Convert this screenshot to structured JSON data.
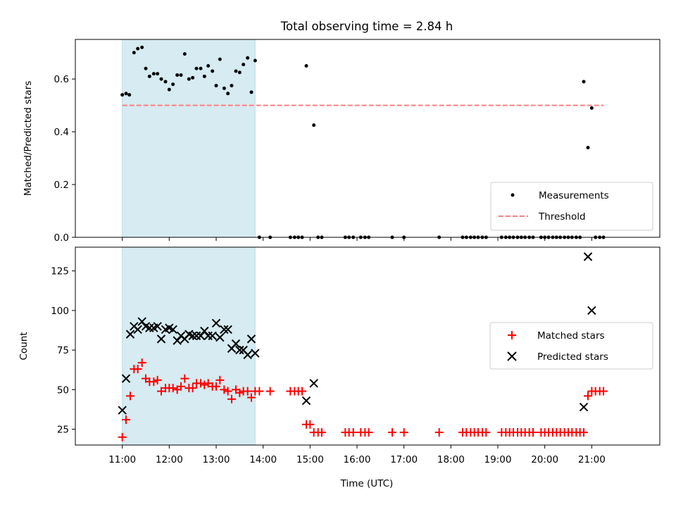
{
  "chart_data": {
    "title": "Total observing time = 2.84 h",
    "xlabel": "Time (UTC)",
    "x_range_hours": [
      10.0,
      22.45
    ],
    "x_ticks": [
      {
        "h": 11,
        "label": "11:00"
      },
      {
        "h": 12,
        "label": "12:00"
      },
      {
        "h": 13,
        "label": "13:00"
      },
      {
        "h": 14,
        "label": "14:00"
      },
      {
        "h": 15,
        "label": "15:00"
      },
      {
        "h": 16,
        "label": "16:00"
      },
      {
        "h": 17,
        "label": "17:00"
      },
      {
        "h": 18,
        "label": "18:00"
      },
      {
        "h": 19,
        "label": "19:00"
      },
      {
        "h": 20,
        "label": "20:00"
      },
      {
        "h": 21,
        "label": "21:00"
      }
    ],
    "shaded_span_hours": [
      11.0,
      13.83
    ],
    "shade_color": "#add8e6",
    "top": {
      "type": "scatter",
      "ylabel": "Matched/Predicted stars",
      "ylim": [
        0.0,
        0.75
      ],
      "y_ticks": [
        "0.0",
        "0.2",
        "0.4",
        "0.6"
      ],
      "threshold": 0.5,
      "threshold_color": "#ff7f7f",
      "legend": {
        "placement": "lower-right",
        "entries": [
          "Measurements",
          "Threshold"
        ]
      },
      "points": [
        [
          11.0,
          0.54
        ],
        [
          11.08,
          0.545
        ],
        [
          11.15,
          0.54
        ],
        [
          11.25,
          0.7
        ],
        [
          11.33,
          0.715
        ],
        [
          11.42,
          0.72
        ],
        [
          11.5,
          0.64
        ],
        [
          11.58,
          0.61
        ],
        [
          11.67,
          0.62
        ],
        [
          11.75,
          0.62
        ],
        [
          11.83,
          0.6
        ],
        [
          11.92,
          0.59
        ],
        [
          12.0,
          0.56
        ],
        [
          12.08,
          0.58
        ],
        [
          12.17,
          0.615
        ],
        [
          12.25,
          0.615
        ],
        [
          12.33,
          0.695
        ],
        [
          12.42,
          0.6
        ],
        [
          12.5,
          0.605
        ],
        [
          12.58,
          0.64
        ],
        [
          12.67,
          0.64
        ],
        [
          12.75,
          0.61
        ],
        [
          12.83,
          0.65
        ],
        [
          12.92,
          0.63
        ],
        [
          13.0,
          0.575
        ],
        [
          13.08,
          0.675
        ],
        [
          13.17,
          0.565
        ],
        [
          13.25,
          0.545
        ],
        [
          13.33,
          0.575
        ],
        [
          13.42,
          0.63
        ],
        [
          13.5,
          0.625
        ],
        [
          13.58,
          0.655
        ],
        [
          13.67,
          0.68
        ],
        [
          13.75,
          0.55
        ],
        [
          13.83,
          0.67
        ],
        [
          13.92,
          0.0
        ],
        [
          14.15,
          0.0
        ],
        [
          14.58,
          0.0
        ],
        [
          14.67,
          0.0
        ],
        [
          14.75,
          0.0
        ],
        [
          14.83,
          0.0
        ],
        [
          14.92,
          0.65
        ],
        [
          15.08,
          0.425
        ],
        [
          15.17,
          0.0
        ],
        [
          15.25,
          0.0
        ],
        [
          15.75,
          0.0
        ],
        [
          15.83,
          0.0
        ],
        [
          15.92,
          0.0
        ],
        [
          16.08,
          0.0
        ],
        [
          16.17,
          0.0
        ],
        [
          16.25,
          0.0
        ],
        [
          16.75,
          0.0
        ],
        [
          17.0,
          0.0
        ],
        [
          17.75,
          0.0
        ],
        [
          18.25,
          0.0
        ],
        [
          18.33,
          0.0
        ],
        [
          18.42,
          0.0
        ],
        [
          18.5,
          0.0
        ],
        [
          18.58,
          0.0
        ],
        [
          18.67,
          0.0
        ],
        [
          18.75,
          0.0
        ],
        [
          19.08,
          0.0
        ],
        [
          19.17,
          0.0
        ],
        [
          19.25,
          0.0
        ],
        [
          19.33,
          0.0
        ],
        [
          19.42,
          0.0
        ],
        [
          19.5,
          0.0
        ],
        [
          19.58,
          0.0
        ],
        [
          19.67,
          0.0
        ],
        [
          19.75,
          0.0
        ],
        [
          19.92,
          0.0
        ],
        [
          20.0,
          0.0
        ],
        [
          20.08,
          0.0
        ],
        [
          20.17,
          0.0
        ],
        [
          20.25,
          0.0
        ],
        [
          20.33,
          0.0
        ],
        [
          20.42,
          0.0
        ],
        [
          20.5,
          0.0
        ],
        [
          20.58,
          0.0
        ],
        [
          20.67,
          0.0
        ],
        [
          20.75,
          0.0
        ],
        [
          20.83,
          0.59
        ],
        [
          20.92,
          0.34
        ],
        [
          21.0,
          0.49
        ],
        [
          21.08,
          0.0
        ],
        [
          21.17,
          0.0
        ],
        [
          21.25,
          0.0
        ]
      ]
    },
    "bottom": {
      "type": "scatter",
      "ylabel": "Count",
      "ylim": [
        15,
        140
      ],
      "y_ticks": [
        25,
        50,
        75,
        100,
        125
      ],
      "legend": {
        "placement": "center-right",
        "entries": [
          "Matched stars",
          "Predicted stars"
        ]
      },
      "series": [
        {
          "name": "Matched stars",
          "marker": "plus",
          "color": "#ff0000",
          "points": [
            [
              11.0,
              20
            ],
            [
              11.08,
              31
            ],
            [
              11.17,
              46
            ],
            [
              11.25,
              63
            ],
            [
              11.33,
              63
            ],
            [
              11.42,
              67
            ],
            [
              11.5,
              57
            ],
            [
              11.58,
              55
            ],
            [
              11.67,
              55
            ],
            [
              11.75,
              56
            ],
            [
              11.83,
              49
            ],
            [
              11.92,
              51
            ],
            [
              12.0,
              51
            ],
            [
              12.08,
              51
            ],
            [
              12.17,
              50
            ],
            [
              12.25,
              52
            ],
            [
              12.33,
              57
            ],
            [
              12.42,
              51
            ],
            [
              12.5,
              51
            ],
            [
              12.58,
              54
            ],
            [
              12.67,
              54
            ],
            [
              12.75,
              53
            ],
            [
              12.83,
              54
            ],
            [
              12.92,
              52
            ],
            [
              13.0,
              52
            ],
            [
              13.08,
              56
            ],
            [
              13.17,
              50
            ],
            [
              13.25,
              49
            ],
            [
              13.33,
              44
            ],
            [
              13.42,
              50
            ],
            [
              13.5,
              48
            ],
            [
              13.58,
              49
            ],
            [
              13.67,
              49
            ],
            [
              13.75,
              45
            ],
            [
              13.83,
              49
            ],
            [
              13.92,
              49
            ],
            [
              14.15,
              49
            ],
            [
              14.58,
              49
            ],
            [
              14.67,
              49
            ],
            [
              14.75,
              49
            ],
            [
              14.83,
              49
            ],
            [
              14.92,
              28
            ],
            [
              15.0,
              28
            ],
            [
              15.08,
              23
            ],
            [
              15.17,
              23
            ],
            [
              15.25,
              23
            ],
            [
              15.75,
              23
            ],
            [
              15.83,
              23
            ],
            [
              15.92,
              23
            ],
            [
              16.08,
              23
            ],
            [
              16.17,
              23
            ],
            [
              16.25,
              23
            ],
            [
              16.75,
              23
            ],
            [
              17.0,
              23
            ],
            [
              17.75,
              23
            ],
            [
              18.25,
              23
            ],
            [
              18.33,
              23
            ],
            [
              18.42,
              23
            ],
            [
              18.5,
              23
            ],
            [
              18.58,
              23
            ],
            [
              18.67,
              23
            ],
            [
              18.75,
              23
            ],
            [
              19.08,
              23
            ],
            [
              19.17,
              23
            ],
            [
              19.25,
              23
            ],
            [
              19.33,
              23
            ],
            [
              19.42,
              23
            ],
            [
              19.5,
              23
            ],
            [
              19.58,
              23
            ],
            [
              19.67,
              23
            ],
            [
              19.75,
              23
            ],
            [
              19.92,
              23
            ],
            [
              20.0,
              23
            ],
            [
              20.08,
              23
            ],
            [
              20.17,
              23
            ],
            [
              20.25,
              23
            ],
            [
              20.33,
              23
            ],
            [
              20.42,
              23
            ],
            [
              20.5,
              23
            ],
            [
              20.58,
              23
            ],
            [
              20.67,
              23
            ],
            [
              20.75,
              23
            ],
            [
              20.83,
              23
            ],
            [
              20.92,
              46
            ],
            [
              21.0,
              49
            ],
            [
              21.08,
              49
            ],
            [
              21.17,
              49
            ],
            [
              21.25,
              49
            ]
          ]
        },
        {
          "name": "Predicted stars",
          "marker": "x",
          "color": "#000000",
          "points": [
            [
              11.0,
              37
            ],
            [
              11.08,
              57
            ],
            [
              11.17,
              85
            ],
            [
              11.25,
              90
            ],
            [
              11.33,
              88
            ],
            [
              11.42,
              93
            ],
            [
              11.5,
              90
            ],
            [
              11.58,
              89
            ],
            [
              11.67,
              89
            ],
            [
              11.75,
              90
            ],
            [
              11.83,
              82
            ],
            [
              11.92,
              88
            ],
            [
              12.0,
              89
            ],
            [
              12.08,
              88
            ],
            [
              12.17,
              81
            ],
            [
              12.25,
              84
            ],
            [
              12.33,
              82
            ],
            [
              12.42,
              85
            ],
            [
              12.5,
              84
            ],
            [
              12.58,
              84
            ],
            [
              12.67,
              84
            ],
            [
              12.75,
              87
            ],
            [
              12.83,
              84
            ],
            [
              12.92,
              84
            ],
            [
              13.0,
              92
            ],
            [
              13.08,
              83
            ],
            [
              13.17,
              88
            ],
            [
              13.25,
              88
            ],
            [
              13.33,
              76
            ],
            [
              13.42,
              79
            ],
            [
              13.5,
              75
            ],
            [
              13.58,
              75
            ],
            [
              13.67,
              72
            ],
            [
              13.75,
              82
            ],
            [
              13.83,
              73
            ],
            [
              14.92,
              43
            ],
            [
              15.08,
              54
            ],
            [
              20.83,
              39
            ],
            [
              20.92,
              134
            ],
            [
              21.0,
              100
            ]
          ]
        }
      ]
    }
  }
}
